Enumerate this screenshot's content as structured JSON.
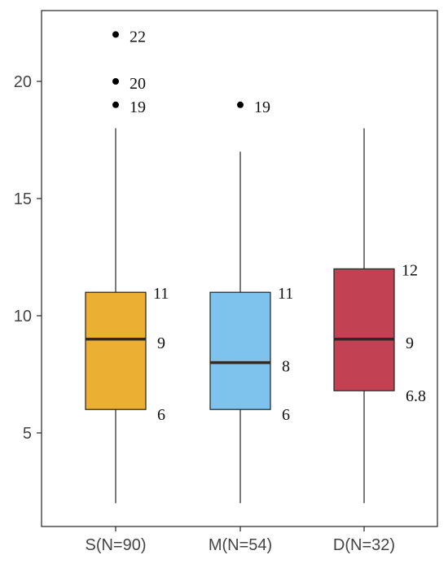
{
  "chart_data": {
    "type": "box",
    "title": "",
    "xlabel": "",
    "ylabel": "",
    "ylim": [
      1.5,
      23
    ],
    "yticks": [
      5,
      10,
      15,
      20
    ],
    "grid": false,
    "legend": "none",
    "categories": [
      "S(N=90)",
      "M(N=54)",
      "D(N=32)"
    ],
    "boxes": [
      {
        "category": "S(N=90)",
        "min": 2,
        "q1": 6,
        "median": 9,
        "q3": 11,
        "max": 18,
        "outliers": [
          19,
          20,
          22
        ],
        "labels": {
          "q1": "6",
          "median": "9",
          "q3": "11"
        },
        "outlier_labels": [
          "19",
          "20",
          "22"
        ],
        "color": "#EBAF33"
      },
      {
        "category": "M(N=54)",
        "min": 2,
        "q1": 6,
        "median": 8,
        "q3": 11,
        "max": 17,
        "outliers": [
          19
        ],
        "labels": {
          "q1": "6",
          "median": "8",
          "q3": "11"
        },
        "outlier_labels": [
          "19"
        ],
        "color": "#7DC3EE"
      },
      {
        "category": "D(N=32)",
        "min": 2,
        "q1": 6.8,
        "median": 9,
        "q3": 12,
        "max": 18,
        "outliers": [],
        "labels": {
          "q1": "6.8",
          "median": "9",
          "q3": "12"
        },
        "outlier_labels": [],
        "color": "#C24152"
      }
    ]
  }
}
